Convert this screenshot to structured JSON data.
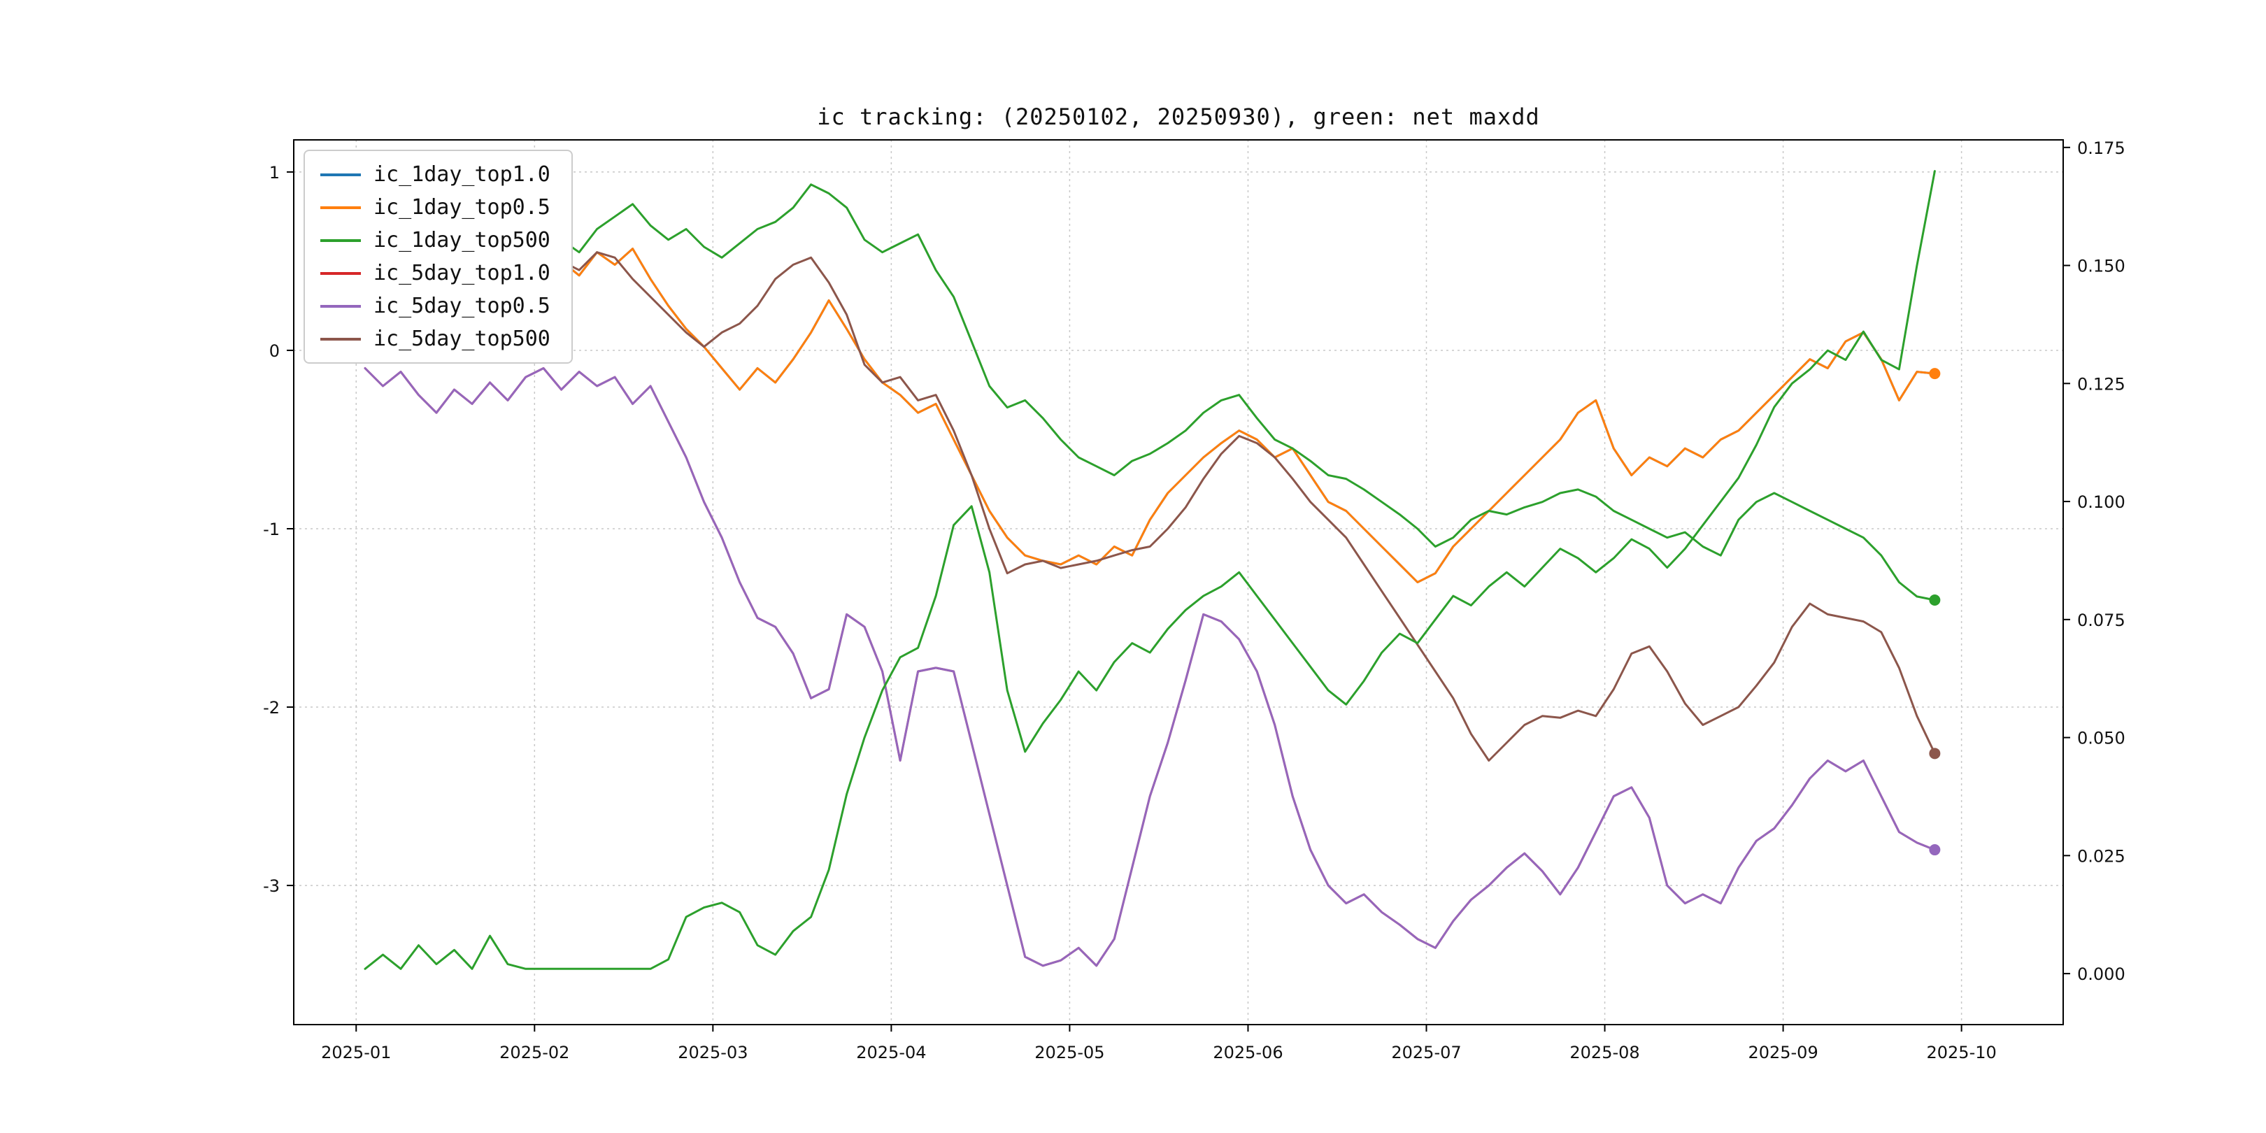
{
  "chart_data": {
    "type": "line",
    "title": "ic tracking: (20250102, 20250930), green: net maxdd",
    "xlabel": "",
    "ylabel": "",
    "grid": true,
    "legend_position": "upper-left",
    "x_axis": {
      "range": [
        0.65,
        10.57
      ],
      "ticks": [
        1,
        2,
        3,
        4,
        5,
        6,
        7,
        8,
        9,
        10
      ],
      "labels": [
        "2025-01",
        "2025-02",
        "2025-03",
        "2025-04",
        "2025-05",
        "2025-06",
        "2025-07",
        "2025-08",
        "2025-09",
        "2025-10"
      ]
    },
    "left_axis": {
      "range": [
        -3.78,
        1.18
      ],
      "ticks": [
        1,
        0,
        -1,
        -2,
        -3
      ]
    },
    "right_axis": {
      "range": [
        -0.0108,
        0.1766
      ],
      "ticks": [
        0.0,
        0.025,
        0.05,
        0.075,
        0.1,
        0.125,
        0.15,
        0.175
      ]
    },
    "x": {
      "start": 1.05,
      "step": 0.1,
      "count": 89
    },
    "series": [
      {
        "name": "ic_1day_top1.0",
        "color": "#1f77b4",
        "axis": "left",
        "end_dot": false,
        "in_legend": true,
        "values": [
          0.3,
          0.22,
          0.38,
          0.28,
          0.42,
          0.25,
          0.35,
          0.3,
          0.45,
          0.32,
          0.4,
          0.5,
          0.42,
          0.55,
          0.48,
          0.57,
          0.4,
          0.25,
          0.12,
          0.02,
          -0.1,
          -0.22,
          -0.1,
          -0.18,
          -0.05,
          0.1,
          0.28,
          0.12,
          -0.05,
          -0.18,
          -0.25,
          -0.35,
          -0.3,
          -0.5,
          -0.7,
          -0.9,
          -1.05,
          -1.15,
          -1.18,
          -1.2,
          -1.15,
          -1.2,
          -1.1,
          -1.15,
          -0.95,
          -0.8,
          -0.7,
          -0.6,
          -0.52,
          -0.45,
          -0.5,
          -0.6,
          -0.55,
          -0.7,
          -0.85,
          -0.9,
          -1.0,
          -1.1,
          -1.2,
          -1.3,
          -1.25,
          -1.1,
          -1.0,
          -0.9,
          -0.8,
          -0.7,
          -0.6,
          -0.5,
          -0.35,
          -0.28,
          -0.55,
          -0.7,
          -0.6,
          -0.65,
          -0.55,
          -0.6,
          -0.5,
          -0.45,
          -0.35,
          -0.25,
          -0.15,
          -0.05,
          -0.1,
          0.05,
          0.1,
          -0.05,
          -0.28,
          -0.12,
          -0.13
        ]
      },
      {
        "name": "ic_1day_top0.5",
        "color": "#ff7f0e",
        "axis": "left",
        "end_dot": true,
        "in_legend": true,
        "values": [
          0.3,
          0.22,
          0.38,
          0.28,
          0.42,
          0.25,
          0.35,
          0.3,
          0.45,
          0.32,
          0.4,
          0.5,
          0.42,
          0.55,
          0.48,
          0.57,
          0.4,
          0.25,
          0.12,
          0.02,
          -0.1,
          -0.22,
          -0.1,
          -0.18,
          -0.05,
          0.1,
          0.28,
          0.12,
          -0.05,
          -0.18,
          -0.25,
          -0.35,
          -0.3,
          -0.5,
          -0.7,
          -0.9,
          -1.05,
          -1.15,
          -1.18,
          -1.2,
          -1.15,
          -1.2,
          -1.1,
          -1.15,
          -0.95,
          -0.8,
          -0.7,
          -0.6,
          -0.52,
          -0.45,
          -0.5,
          -0.6,
          -0.55,
          -0.7,
          -0.85,
          -0.9,
          -1.0,
          -1.1,
          -1.2,
          -1.3,
          -1.25,
          -1.1,
          -1.0,
          -0.9,
          -0.8,
          -0.7,
          -0.6,
          -0.5,
          -0.35,
          -0.28,
          -0.55,
          -0.7,
          -0.6,
          -0.65,
          -0.55,
          -0.6,
          -0.5,
          -0.45,
          -0.35,
          -0.25,
          -0.15,
          -0.05,
          -0.1,
          0.05,
          0.1,
          -0.05,
          -0.28,
          -0.12,
          -0.13
        ]
      },
      {
        "name": "ic_1day_top500",
        "color": "#2ca02c",
        "axis": "left",
        "end_dot": true,
        "in_legend": true,
        "values": [
          0.35,
          0.45,
          0.3,
          0.5,
          0.38,
          0.52,
          0.4,
          0.55,
          0.45,
          0.58,
          0.5,
          0.62,
          0.55,
          0.68,
          0.75,
          0.82,
          0.7,
          0.62,
          0.68,
          0.58,
          0.52,
          0.6,
          0.68,
          0.72,
          0.8,
          0.93,
          0.88,
          0.8,
          0.62,
          0.55,
          0.6,
          0.65,
          0.45,
          0.3,
          0.05,
          -0.2,
          -0.32,
          -0.28,
          -0.38,
          -0.5,
          -0.6,
          -0.65,
          -0.7,
          -0.62,
          -0.58,
          -0.52,
          -0.45,
          -0.35,
          -0.28,
          -0.25,
          -0.38,
          -0.5,
          -0.55,
          -0.62,
          -0.7,
          -0.72,
          -0.78,
          -0.85,
          -0.92,
          -1.0,
          -1.1,
          -1.05,
          -0.95,
          -0.9,
          -0.92,
          -0.88,
          -0.85,
          -0.8,
          -0.78,
          -0.82,
          -0.9,
          -0.95,
          -1.0,
          -1.05,
          -1.02,
          -1.1,
          -1.15,
          -0.95,
          -0.85,
          -0.8,
          -0.85,
          -0.9,
          -0.95,
          -1.0,
          -1.05,
          -1.15,
          -1.3,
          -1.38,
          -1.4
        ]
      },
      {
        "name": "ic_5day_top1.0",
        "color": "#d62728",
        "axis": "left",
        "end_dot": false,
        "in_legend": true,
        "values": [
          -0.1,
          -0.2,
          -0.12,
          -0.25,
          -0.35,
          -0.22,
          -0.3,
          -0.18,
          -0.28,
          -0.15,
          -0.1,
          -0.22,
          -0.12,
          -0.2,
          -0.15,
          -0.3,
          -0.2,
          -0.4,
          -0.6,
          -0.85,
          -1.05,
          -1.3,
          -1.5,
          -1.55,
          -1.7,
          -1.95,
          -1.9,
          -1.48,
          -1.55,
          -1.8,
          -2.3,
          -1.8,
          -1.78,
          -1.8,
          -2.2,
          -2.6,
          -3.0,
          -3.4,
          -3.45,
          -3.42,
          -3.35,
          -3.45,
          -3.3,
          -2.9,
          -2.5,
          -2.2,
          -1.85,
          -1.48,
          -1.52,
          -1.62,
          -1.8,
          -2.1,
          -2.5,
          -2.8,
          -3.0,
          -3.1,
          -3.05,
          -3.15,
          -3.22,
          -3.3,
          -3.35,
          -3.2,
          -3.08,
          -3.0,
          -2.9,
          -2.82,
          -2.92,
          -3.05,
          -2.9,
          -2.7,
          -2.5,
          -2.45,
          -2.62,
          -3.0,
          -3.1,
          -3.05,
          -3.1,
          -2.9,
          -2.75,
          -2.68,
          -2.55,
          -2.4,
          -2.3,
          -2.36,
          -2.3,
          -2.5,
          -2.7,
          -2.76,
          -2.8
        ]
      },
      {
        "name": "ic_5day_top0.5",
        "color": "#9467bd",
        "axis": "left",
        "end_dot": true,
        "in_legend": true,
        "values": [
          -0.1,
          -0.2,
          -0.12,
          -0.25,
          -0.35,
          -0.22,
          -0.3,
          -0.18,
          -0.28,
          -0.15,
          -0.1,
          -0.22,
          -0.12,
          -0.2,
          -0.15,
          -0.3,
          -0.2,
          -0.4,
          -0.6,
          -0.85,
          -1.05,
          -1.3,
          -1.5,
          -1.55,
          -1.7,
          -1.95,
          -1.9,
          -1.48,
          -1.55,
          -1.8,
          -2.3,
          -1.8,
          -1.78,
          -1.8,
          -2.2,
          -2.6,
          -3.0,
          -3.4,
          -3.45,
          -3.42,
          -3.35,
          -3.45,
          -3.3,
          -2.9,
          -2.5,
          -2.2,
          -1.85,
          -1.48,
          -1.52,
          -1.62,
          -1.8,
          -2.1,
          -2.5,
          -2.8,
          -3.0,
          -3.1,
          -3.05,
          -3.15,
          -3.22,
          -3.3,
          -3.35,
          -3.2,
          -3.08,
          -3.0,
          -2.9,
          -2.82,
          -2.92,
          -3.05,
          -2.9,
          -2.7,
          -2.5,
          -2.45,
          -2.62,
          -3.0,
          -3.1,
          -3.05,
          -3.1,
          -2.9,
          -2.75,
          -2.68,
          -2.55,
          -2.4,
          -2.3,
          -2.36,
          -2.3,
          -2.5,
          -2.7,
          -2.76,
          -2.8
        ]
      },
      {
        "name": "ic_5day_top500",
        "color": "#8c564b",
        "axis": "left",
        "end_dot": true,
        "in_legend": true,
        "values": [
          0.35,
          0.42,
          0.32,
          0.45,
          0.35,
          0.48,
          0.38,
          0.5,
          0.4,
          0.45,
          0.42,
          0.5,
          0.45,
          0.55,
          0.52,
          0.4,
          0.3,
          0.2,
          0.1,
          0.02,
          0.1,
          0.15,
          0.25,
          0.4,
          0.48,
          0.52,
          0.38,
          0.2,
          -0.08,
          -0.18,
          -0.15,
          -0.28,
          -0.25,
          -0.45,
          -0.7,
          -1.0,
          -1.25,
          -1.2,
          -1.18,
          -1.22,
          -1.2,
          -1.18,
          -1.15,
          -1.12,
          -1.1,
          -1.0,
          -0.88,
          -0.72,
          -0.58,
          -0.48,
          -0.52,
          -0.6,
          -0.72,
          -0.85,
          -0.95,
          -1.05,
          -1.2,
          -1.35,
          -1.5,
          -1.65,
          -1.8,
          -1.95,
          -2.15,
          -2.3,
          -2.2,
          -2.1,
          -2.05,
          -2.06,
          -2.02,
          -2.05,
          -1.9,
          -1.7,
          -1.66,
          -1.8,
          -1.98,
          -2.1,
          -2.05,
          -2.0,
          -1.88,
          -1.75,
          -1.55,
          -1.42,
          -1.48,
          -1.5,
          -1.52,
          -1.58,
          -1.78,
          -2.05,
          -2.26
        ]
      },
      {
        "name": "net_maxdd",
        "color": "#2ca02c",
        "axis": "right",
        "end_dot": false,
        "in_legend": false,
        "values": [
          0.001,
          0.004,
          0.001,
          0.006,
          0.002,
          0.005,
          0.001,
          0.008,
          0.002,
          0.001,
          0.001,
          0.001,
          0.001,
          0.001,
          0.001,
          0.001,
          0.001,
          0.003,
          0.012,
          0.014,
          0.015,
          0.013,
          0.006,
          0.004,
          0.009,
          0.012,
          0.022,
          0.038,
          0.05,
          0.06,
          0.067,
          0.069,
          0.08,
          0.095,
          0.099,
          0.085,
          0.06,
          0.047,
          0.053,
          0.058,
          0.064,
          0.06,
          0.066,
          0.07,
          0.068,
          0.073,
          0.077,
          0.08,
          0.082,
          0.085,
          0.08,
          0.075,
          0.07,
          0.065,
          0.06,
          0.057,
          0.062,
          0.068,
          0.072,
          0.07,
          0.075,
          0.08,
          0.078,
          0.082,
          0.085,
          0.082,
          0.086,
          0.09,
          0.088,
          0.085,
          0.088,
          0.092,
          0.09,
          0.086,
          0.09,
          0.095,
          0.1,
          0.105,
          0.112,
          0.12,
          0.125,
          0.128,
          0.132,
          0.13,
          0.136,
          0.13,
          0.128,
          0.15,
          0.17
        ]
      }
    ],
    "colors": {
      "grid": "#c8c8c8",
      "spine": "#000000",
      "background": "#ffffff"
    }
  }
}
